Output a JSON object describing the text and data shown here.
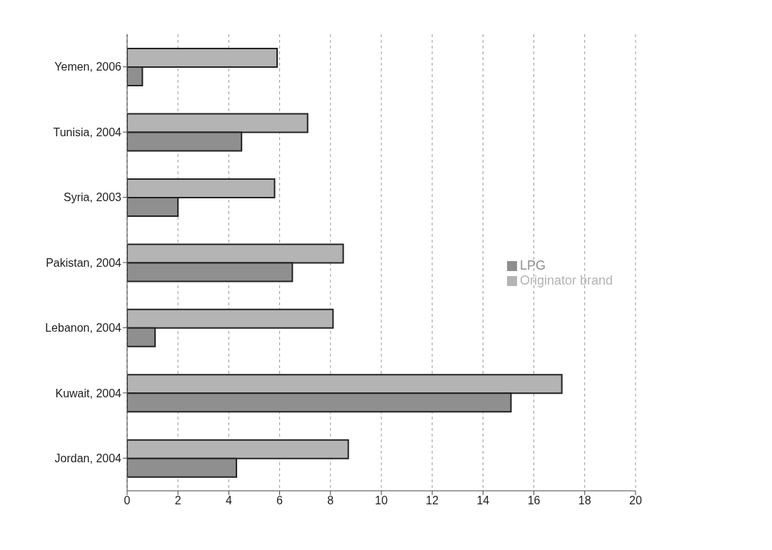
{
  "chart_data": {
    "type": "bar",
    "orientation": "horizontal",
    "categories": [
      "Yemen, 2006",
      "Tunisia, 2004",
      "Syria, 2003",
      "Pakistan, 2004",
      "Lebanon, 2004",
      "Kuwait, 2004",
      "Jordan, 2004"
    ],
    "series": [
      {
        "name": "Originator brand",
        "color": "#b4b4b4",
        "values": [
          5.9,
          7.1,
          5.8,
          8.5,
          8.1,
          17.1,
          8.7
        ]
      },
      {
        "name": "LPG",
        "color": "#8f8f8f",
        "values": [
          0.6,
          4.5,
          2.0,
          6.5,
          1.1,
          15.1,
          4.3
        ]
      }
    ],
    "xlim": [
      0,
      20
    ],
    "xticks": [
      0,
      2,
      4,
      6,
      8,
      10,
      12,
      14,
      16,
      18,
      20
    ],
    "grid": "x",
    "legend": "right"
  }
}
